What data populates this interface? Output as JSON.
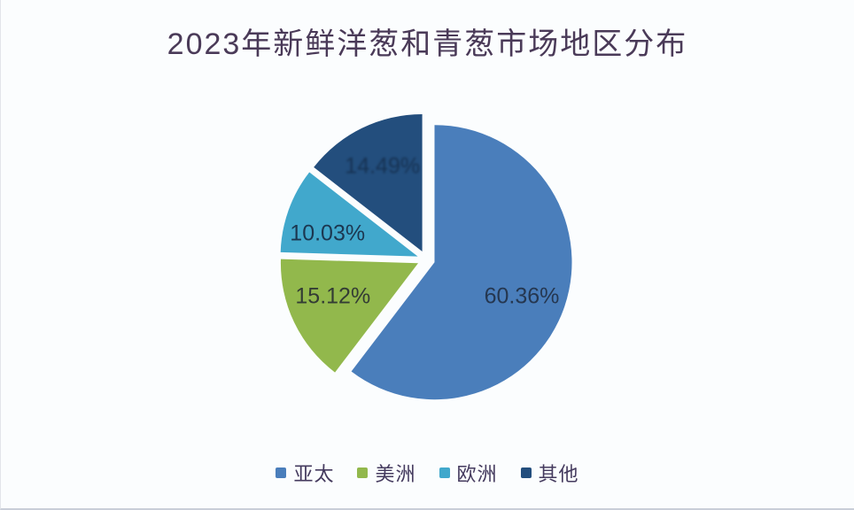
{
  "page": {
    "background_color": "#fbfdfe"
  },
  "chart_data": {
    "type": "pie",
    "title": "2023年新鲜洋葱和青葱市场地区分布",
    "unit": "%",
    "legend_position": "bottom",
    "start_angle_deg": 0,
    "direction": "clockwise",
    "exploded": true,
    "title_color": "#4a3a58",
    "slices": [
      {
        "id": "apac",
        "label": "亚太",
        "value": 60.36,
        "display": "60.36%",
        "color": "#4a7ebb",
        "label_color": "#253750"
      },
      {
        "id": "americas",
        "label": "美洲",
        "value": 15.12,
        "display": "15.12%",
        "color": "#92b84c",
        "label_color": "#333c34"
      },
      {
        "id": "europe",
        "label": "欧洲",
        "value": 10.03,
        "display": "10.03%",
        "color": "#41a8cc",
        "label_color": "#1c3750"
      },
      {
        "id": "other",
        "label": "其他",
        "value": 14.49,
        "display": "14.49%",
        "color": "#234e7d",
        "label_color": "#152f4e"
      }
    ]
  }
}
